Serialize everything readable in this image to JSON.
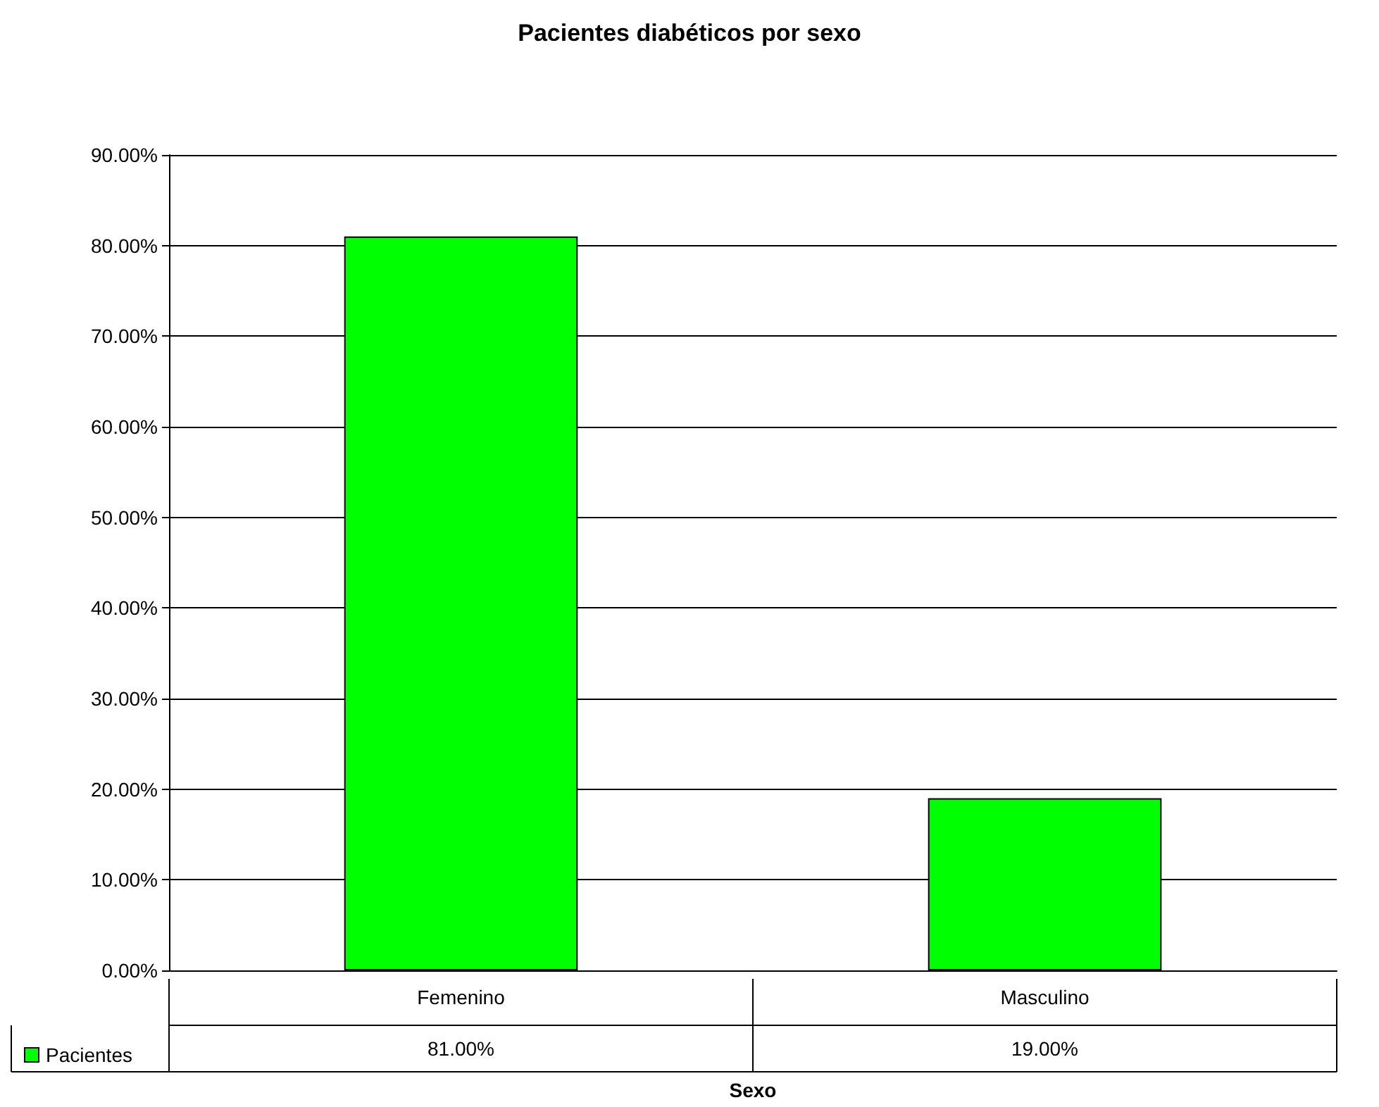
{
  "chart_data": {
    "type": "bar",
    "title": "Pacientes diabéticos por sexo",
    "xlabel": "Sexo",
    "categories": [
      "Femenino",
      "Masculino"
    ],
    "series": [
      {
        "name": "Pacientes",
        "color": "#00ff00",
        "values": [
          81,
          19
        ],
        "value_labels": [
          "81.00%",
          "19.00%"
        ]
      }
    ],
    "ylim": [
      0,
      90
    ],
    "yticks": [
      {
        "value": 0,
        "label": "0.00%"
      },
      {
        "value": 10,
        "label": "10.00%"
      },
      {
        "value": 20,
        "label": "20.00%"
      },
      {
        "value": 30,
        "label": "30.00%"
      },
      {
        "value": 40,
        "label": "40.00%"
      },
      {
        "value": 50,
        "label": "50.00%"
      },
      {
        "value": 60,
        "label": "60.00%"
      },
      {
        "value": 70,
        "label": "70.00%"
      },
      {
        "value": 80,
        "label": "80.00%"
      },
      {
        "value": 90,
        "label": "90.00%"
      }
    ],
    "grid": "y",
    "legend": "bottom left"
  }
}
